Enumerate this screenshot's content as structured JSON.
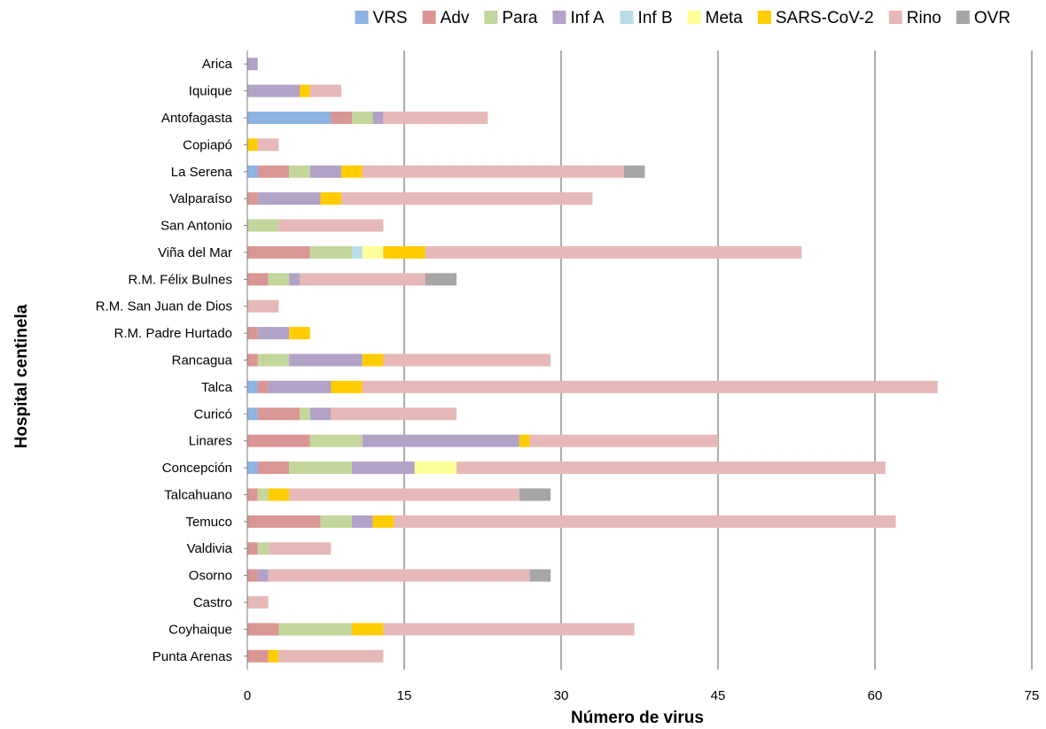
{
  "chart_data": {
    "type": "bar",
    "orientation": "horizontal",
    "stacked": true,
    "xlabel": "Número de virus",
    "ylabel": "Hospital centinela",
    "xlim": [
      0,
      75
    ],
    "xticks": [
      0,
      15,
      30,
      45,
      60,
      75
    ],
    "grid": "vertical",
    "legend_position": "top",
    "categories": [
      "Arica",
      "Iquique",
      "Antofagasta",
      "Copiapó",
      "La Serena",
      "Valparaíso",
      "San Antonio",
      "Viña del Mar",
      "R.M. Félix Bulnes",
      "R.M. San Juan de Dios",
      "R.M. Padre Hurtado",
      "Rancagua",
      "Talca",
      "Curicó",
      "Linares",
      "Concepción",
      "Talcahuano",
      "Temuco",
      "Valdivia",
      "Osorno",
      "Castro",
      "Coyhaique",
      "Punta Arenas"
    ],
    "series": [
      {
        "name": "VRS",
        "color": "#8db3e2",
        "values": [
          0,
          0,
          8,
          0,
          1,
          0,
          0,
          0,
          0,
          0,
          0,
          0,
          1,
          1,
          0,
          1,
          0,
          0,
          0,
          0,
          0,
          0,
          0
        ]
      },
      {
        "name": "Adv",
        "color": "#da9694",
        "values": [
          0,
          0,
          2,
          0,
          3,
          1,
          0,
          6,
          2,
          0,
          1,
          1,
          1,
          4,
          6,
          3,
          1,
          7,
          1,
          1,
          0,
          3,
          2
        ]
      },
      {
        "name": "Para",
        "color": "#c3d69b",
        "values": [
          0,
          0,
          2,
          0,
          2,
          0,
          3,
          4,
          2,
          0,
          0,
          3,
          0,
          1,
          5,
          6,
          1,
          3,
          1,
          0,
          0,
          7,
          0
        ]
      },
      {
        "name": "Inf A",
        "color": "#b3a2c7",
        "values": [
          1,
          5,
          1,
          0,
          3,
          6,
          0,
          0,
          1,
          0,
          3,
          7,
          6,
          2,
          15,
          6,
          0,
          2,
          0,
          1,
          0,
          0,
          0
        ]
      },
      {
        "name": "Inf B",
        "color": "#b7dee8",
        "values": [
          0,
          0,
          0,
          0,
          0,
          0,
          0,
          1,
          0,
          0,
          0,
          0,
          0,
          0,
          0,
          0,
          0,
          0,
          0,
          0,
          0,
          0,
          0
        ]
      },
      {
        "name": "Meta",
        "color": "#ffff99",
        "values": [
          0,
          0,
          0,
          0,
          0,
          0,
          0,
          2,
          0,
          0,
          0,
          0,
          0,
          0,
          0,
          4,
          0,
          0,
          0,
          0,
          0,
          0,
          0
        ]
      },
      {
        "name": "SARS-CoV-2",
        "color": "#ffcc00",
        "values": [
          0,
          1,
          0,
          1,
          2,
          2,
          0,
          4,
          0,
          0,
          2,
          2,
          3,
          0,
          1,
          0,
          2,
          2,
          0,
          0,
          0,
          3,
          1
        ]
      },
      {
        "name": "Rino",
        "color": "#e6b9b8",
        "values": [
          0,
          3,
          10,
          2,
          25,
          24,
          10,
          36,
          12,
          3,
          0,
          16,
          55,
          12,
          18,
          41,
          22,
          48,
          6,
          25,
          2,
          24,
          10
        ]
      },
      {
        "name": "OVR",
        "color": "#a6a6a6",
        "values": [
          0,
          0,
          0,
          0,
          2,
          0,
          0,
          0,
          3,
          0,
          0,
          0,
          0,
          0,
          0,
          0,
          3,
          0,
          0,
          2,
          0,
          0,
          0
        ]
      }
    ]
  }
}
